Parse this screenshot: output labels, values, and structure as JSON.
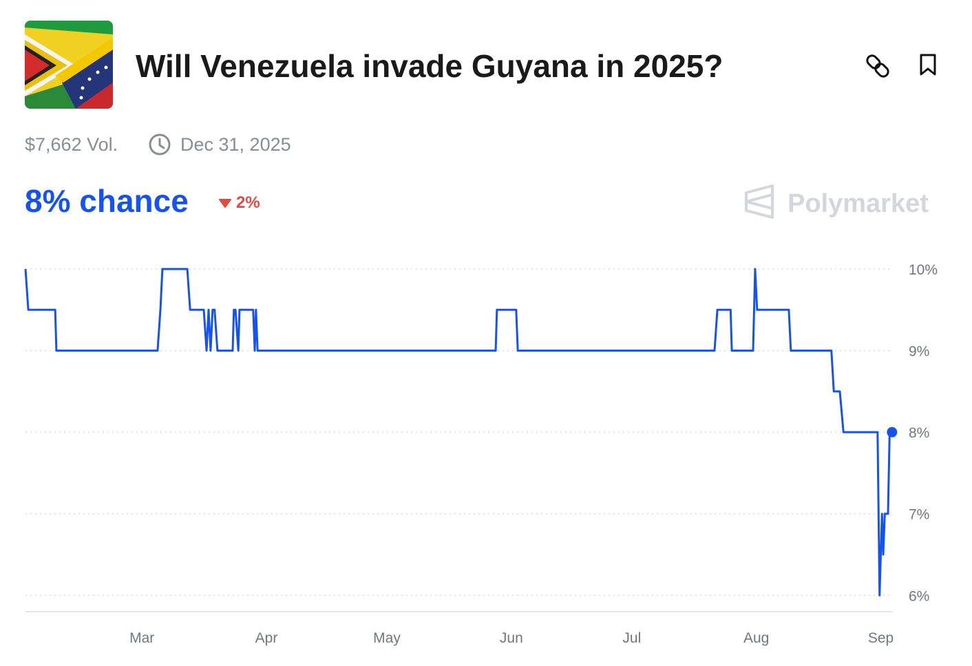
{
  "header": {
    "title": "Will Venezuela invade Guyana in 2025?",
    "volume": "$7,662 Vol.",
    "end_date": "Dec 31, 2025",
    "chance": "8% chance",
    "change": "2%",
    "brand": "Polymarket"
  },
  "chart_data": {
    "type": "line",
    "x": [
      31,
      31.7,
      38.4,
      38.7,
      63.9,
      64.6,
      65.1,
      71.3,
      72.0,
      75.4,
      76.1,
      76.6,
      77.1,
      77.6,
      78.1,
      78.8,
      82.6,
      82.9,
      83.3,
      84.0,
      84.3,
      87.7,
      88.1,
      88.4,
      88.8,
      148.1,
      148.4,
      153.2,
      153.6,
      202.6,
      203.3,
      206.6,
      206.9,
      212.2,
      212.7,
      213.2,
      221.1,
      221.6,
      231.7,
      232.3,
      233.8,
      234.7,
      243.2,
      243.7,
      244.3,
      244.6,
      245.0,
      245.8,
      246.2,
      246.8
    ],
    "series": [
      {
        "color": "#1652f0",
        "values": [
          10,
          9.5,
          9.5,
          9,
          9,
          9.5,
          10,
          10,
          9.5,
          9.5,
          9,
          9.5,
          9,
          9.5,
          9.5,
          9,
          9,
          9.5,
          9.5,
          9,
          9.5,
          9.5,
          9,
          9.5,
          9,
          9,
          9.5,
          9.5,
          9,
          9,
          9.5,
          9.5,
          9,
          9,
          10,
          9.5,
          9.5,
          9,
          9,
          8.5,
          8.5,
          8,
          8,
          6,
          7,
          6.5,
          7,
          7,
          8,
          8
        ]
      }
    ],
    "xlim": [
      31,
      247
    ],
    "xticks": [
      {
        "value": 60,
        "label": "Mar"
      },
      {
        "value": 91,
        "label": "Apr"
      },
      {
        "value": 121,
        "label": "May"
      },
      {
        "value": 152,
        "label": "Jun"
      },
      {
        "value": 182,
        "label": "Jul"
      },
      {
        "value": 213,
        "label": "Aug"
      },
      {
        "value": 244,
        "label": "Sep"
      }
    ],
    "ylim": [
      5.8,
      10
    ],
    "yticks": [
      {
        "value": 6,
        "label": "6%"
      },
      {
        "value": 7,
        "label": "7%"
      },
      {
        "value": 8,
        "label": "8%"
      },
      {
        "value": 9,
        "label": "9%"
      },
      {
        "value": 10,
        "label": "10%"
      }
    ],
    "grid": true
  }
}
